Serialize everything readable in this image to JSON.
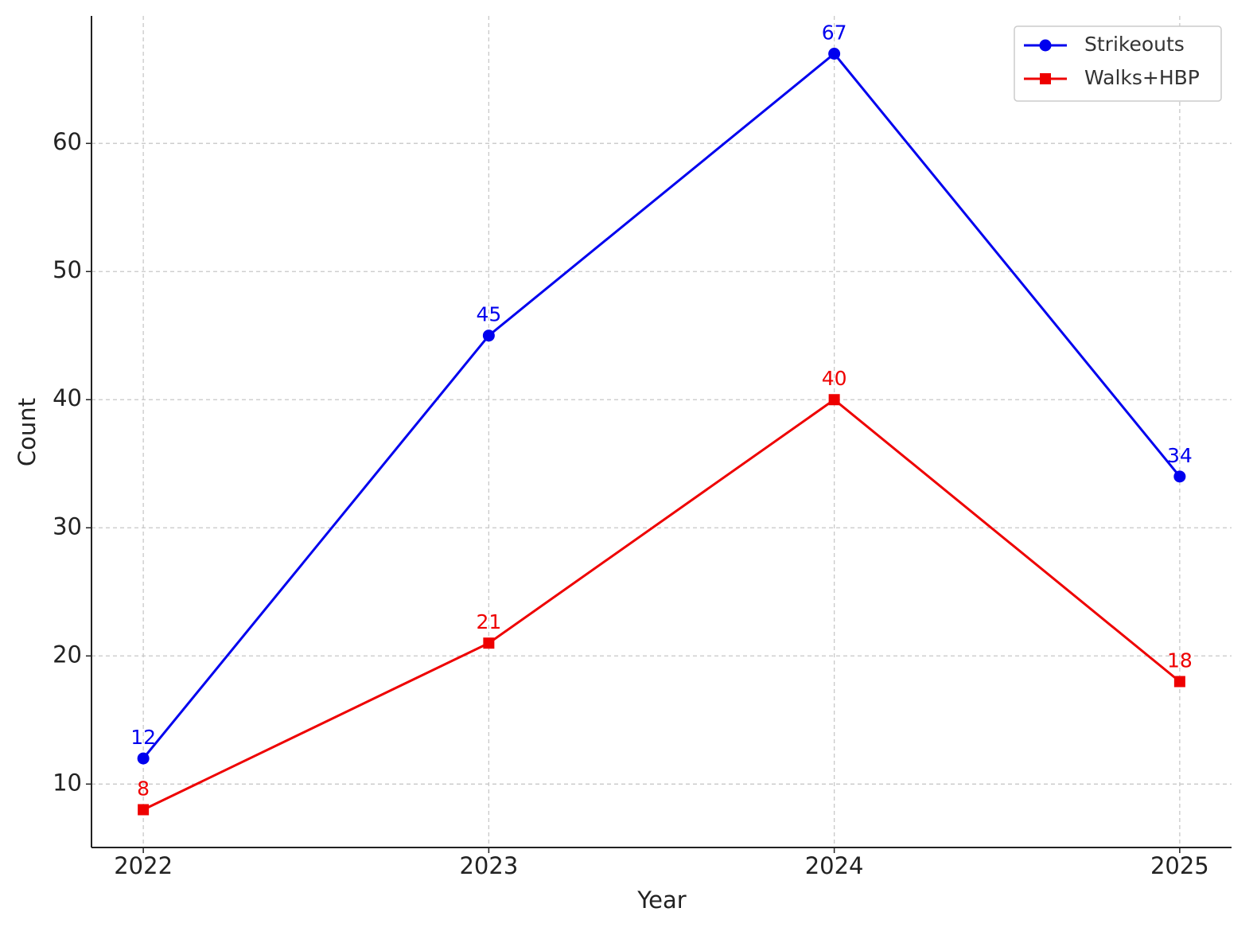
{
  "chart_data": {
    "type": "line",
    "x_label": "Year",
    "y_label": "Count",
    "x": [
      2022,
      2023,
      2024,
      2025
    ],
    "series": [
      {
        "name": "Strikeouts",
        "color": "#0000ee",
        "marker": "circle",
        "values": [
          12,
          45,
          67,
          34
        ]
      },
      {
        "name": "Walks+HBP",
        "color": "#ee0000",
        "marker": "square",
        "values": [
          8,
          21,
          40,
          18
        ]
      }
    ],
    "xlim": [
      2021.85,
      2025.15
    ],
    "xticks": [
      2022,
      2023,
      2024,
      2025
    ],
    "ylim": [
      5.05,
      69.95
    ],
    "yticks": [
      10,
      20,
      30,
      40,
      50,
      60
    ],
    "grid": true,
    "legend": "upper right"
  }
}
